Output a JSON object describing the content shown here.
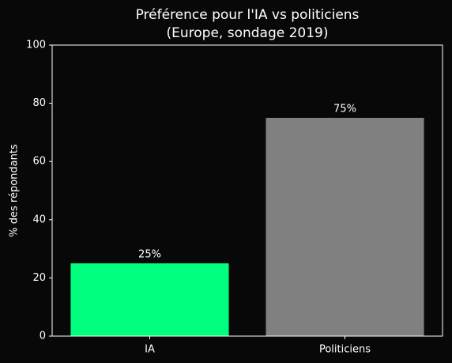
{
  "chart_data": {
    "type": "bar",
    "title": [
      "Préférence pour l'IA vs politiciens",
      "(Europe, sondage 2019)"
    ],
    "ylabel": "% des répondants",
    "categories": [
      "IA",
      "Politiciens"
    ],
    "values": [
      25,
      75
    ],
    "value_labels": [
      "25%",
      "75%"
    ],
    "colors": [
      "#00ff7f",
      "#808080"
    ],
    "ylim": [
      0,
      100
    ],
    "yticks": [
      0,
      20,
      40,
      60,
      80,
      100
    ],
    "grid": false
  }
}
